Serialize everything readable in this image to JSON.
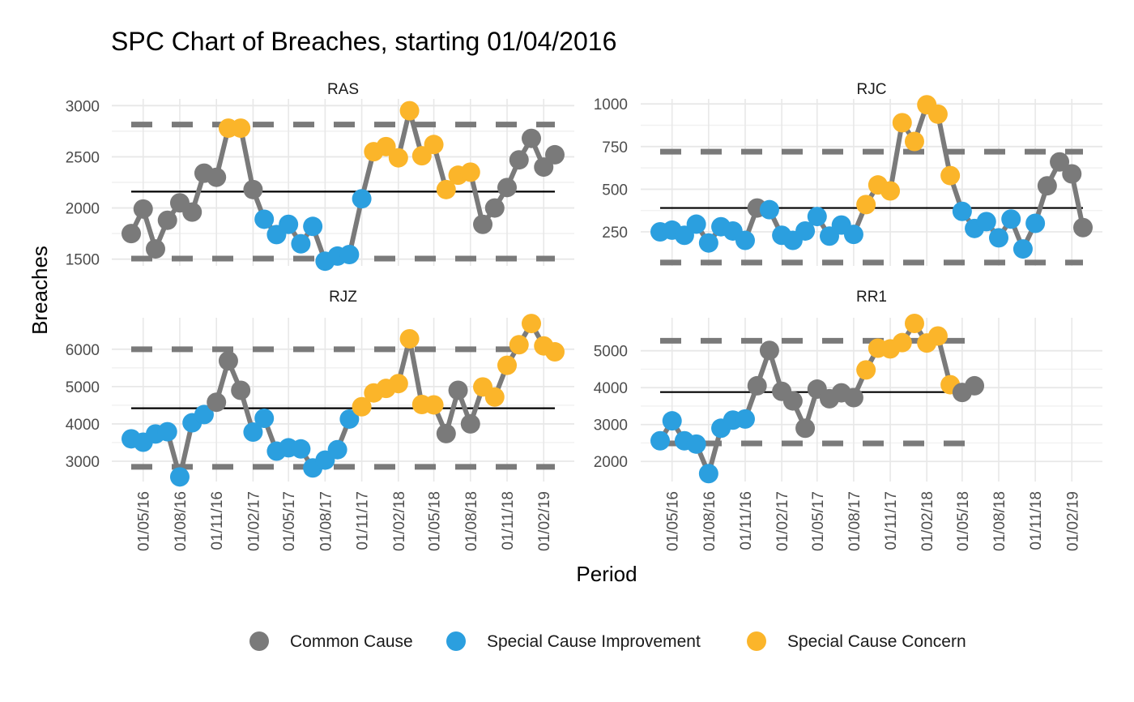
{
  "chart_data": {
    "type": "line",
    "title": "SPC Chart of Breaches, starting 01/04/2016",
    "xlabel": "Period",
    "ylabel": "Breaches",
    "grid": true,
    "legend_position": "bottom",
    "x_dates": [
      "2016-04-01",
      "2016-05-01",
      "2016-06-01",
      "2016-07-01",
      "2016-08-01",
      "2016-09-01",
      "2016-10-01",
      "2016-11-01",
      "2016-12-01",
      "2017-01-01",
      "2017-02-01",
      "2017-03-01",
      "2017-04-01",
      "2017-05-01",
      "2017-06-01",
      "2017-07-01",
      "2017-08-01",
      "2017-09-01",
      "2017-10-01",
      "2017-11-01",
      "2017-12-01",
      "2018-01-01",
      "2018-02-01",
      "2018-03-01",
      "2018-04-01",
      "2018-05-01",
      "2018-06-01",
      "2018-07-01",
      "2018-08-01",
      "2018-09-01",
      "2018-10-01",
      "2018-11-01",
      "2018-12-01",
      "2019-01-01",
      "2019-02-01",
      "2019-03-01"
    ],
    "x_tick_labels": [
      "01/05/16",
      "01/08/16",
      "01/11/16",
      "01/02/17",
      "01/05/17",
      "01/08/17",
      "01/11/17",
      "01/02/18",
      "01/05/18",
      "01/08/18",
      "01/11/18",
      "01/02/19"
    ],
    "x_tick_dates": [
      "2016-05-01",
      "2016-08-01",
      "2016-11-01",
      "2017-02-01",
      "2017-05-01",
      "2017-08-01",
      "2017-11-01",
      "2018-02-01",
      "2018-05-01",
      "2018-08-01",
      "2018-11-01",
      "2019-02-01"
    ],
    "legend": [
      {
        "key": "C",
        "label": "Common Cause",
        "color": "#7a7a7a"
      },
      {
        "key": "I",
        "label": "Special Cause Improvement",
        "color": "#2b9fdf"
      },
      {
        "key": "W",
        "label": "Special Cause Concern",
        "color": "#fbb52a"
      }
    ],
    "line_color": "#7a7a7a",
    "mean_color": "#000000",
    "limit_color": "#7a7a7a",
    "panels": [
      {
        "name": "RAS",
        "ylim": [
          1450,
          3050
        ],
        "yticks": [
          1500,
          2000,
          2500,
          3000
        ],
        "mean": 2160,
        "ucl": 2815,
        "lcl": 1505,
        "values": [
          1750,
          1990,
          1600,
          1880,
          2050,
          1960,
          2340,
          2300,
          2780,
          2780,
          2180,
          1890,
          1740,
          1840,
          1650,
          1820,
          1480,
          1530,
          1545,
          2090,
          2550,
          2600,
          2490,
          2950,
          2510,
          2620,
          2180,
          2320,
          2350,
          1840,
          2000,
          2200,
          2470,
          2680,
          2400,
          2520
        ],
        "cause": [
          "C",
          "C",
          "C",
          "C",
          "C",
          "C",
          "C",
          "C",
          "W",
          "W",
          "C",
          "I",
          "I",
          "I",
          "I",
          "I",
          "I",
          "I",
          "I",
          "I",
          "W",
          "W",
          "W",
          "W",
          "W",
          "W",
          "W",
          "W",
          "W",
          "C",
          "C",
          "C",
          "C",
          "C",
          "C",
          "C"
        ]
      },
      {
        "name": "RJC",
        "ylim": [
          60,
          1020
        ],
        "yticks": [
          250,
          500,
          750,
          1000
        ],
        "mean": 390,
        "ucl": 720,
        "lcl": 70,
        "values": [
          250,
          260,
          230,
          295,
          185,
          280,
          255,
          200,
          390,
          380,
          230,
          200,
          255,
          340,
          225,
          290,
          235,
          410,
          525,
          490,
          890,
          780,
          995,
          940,
          580,
          370,
          270,
          310,
          215,
          325,
          150,
          300,
          520,
          660,
          590,
          275
        ],
        "cause": [
          "I",
          "I",
          "I",
          "I",
          "I",
          "I",
          "I",
          "I",
          "C",
          "I",
          "I",
          "I",
          "I",
          "I",
          "I",
          "I",
          "I",
          "W",
          "W",
          "W",
          "W",
          "W",
          "W",
          "W",
          "W",
          "I",
          "I",
          "I",
          "I",
          "I",
          "I",
          "I",
          "C",
          "C",
          "C",
          "C"
        ]
      },
      {
        "name": "RJZ",
        "ylim": [
          2500,
          6800
        ],
        "yticks": [
          3000,
          4000,
          5000,
          6000
        ],
        "mean": 4420,
        "ucl": 6000,
        "lcl": 2850,
        "values": [
          3600,
          3510,
          3730,
          3790,
          2580,
          4030,
          4250,
          4580,
          5690,
          4900,
          3780,
          4150,
          3270,
          3360,
          3330,
          2820,
          3030,
          3310,
          4130,
          4460,
          4830,
          4950,
          5080,
          6280,
          4520,
          4510,
          3740,
          4900,
          4000,
          4990,
          4720,
          5570,
          6120,
          6690,
          6090,
          5930
        ],
        "cause": [
          "I",
          "I",
          "I",
          "I",
          "I",
          "I",
          "I",
          "C",
          "C",
          "C",
          "I",
          "I",
          "I",
          "I",
          "I",
          "I",
          "I",
          "I",
          "I",
          "W",
          "W",
          "W",
          "W",
          "W",
          "W",
          "W",
          "C",
          "C",
          "C",
          "W",
          "W",
          "W",
          "W",
          "W",
          "W",
          "W"
        ]
      },
      {
        "name": "RR1",
        "ylim": [
          1500,
          5850
        ],
        "yticks": [
          2000,
          3000,
          4000,
          5000
        ],
        "mean": 3880,
        "ucl": 5270,
        "lcl": 2490,
        "values": [
          2560,
          3100,
          2560,
          2470,
          1670,
          2900,
          3120,
          3150,
          4050,
          5010,
          3900,
          3640,
          2900,
          3960,
          3700,
          3860,
          3730,
          4480,
          5070,
          5050,
          5220,
          5740,
          5210,
          5400,
          4080,
          3870,
          4050
        ],
        "cause": [
          "I",
          "I",
          "I",
          "I",
          "I",
          "I",
          "I",
          "I",
          "C",
          "C",
          "C",
          "C",
          "C",
          "C",
          "C",
          "C",
          "C",
          "W",
          "W",
          "W",
          "W",
          "W",
          "W",
          "W",
          "W",
          "C",
          "C"
        ]
      }
    ]
  }
}
